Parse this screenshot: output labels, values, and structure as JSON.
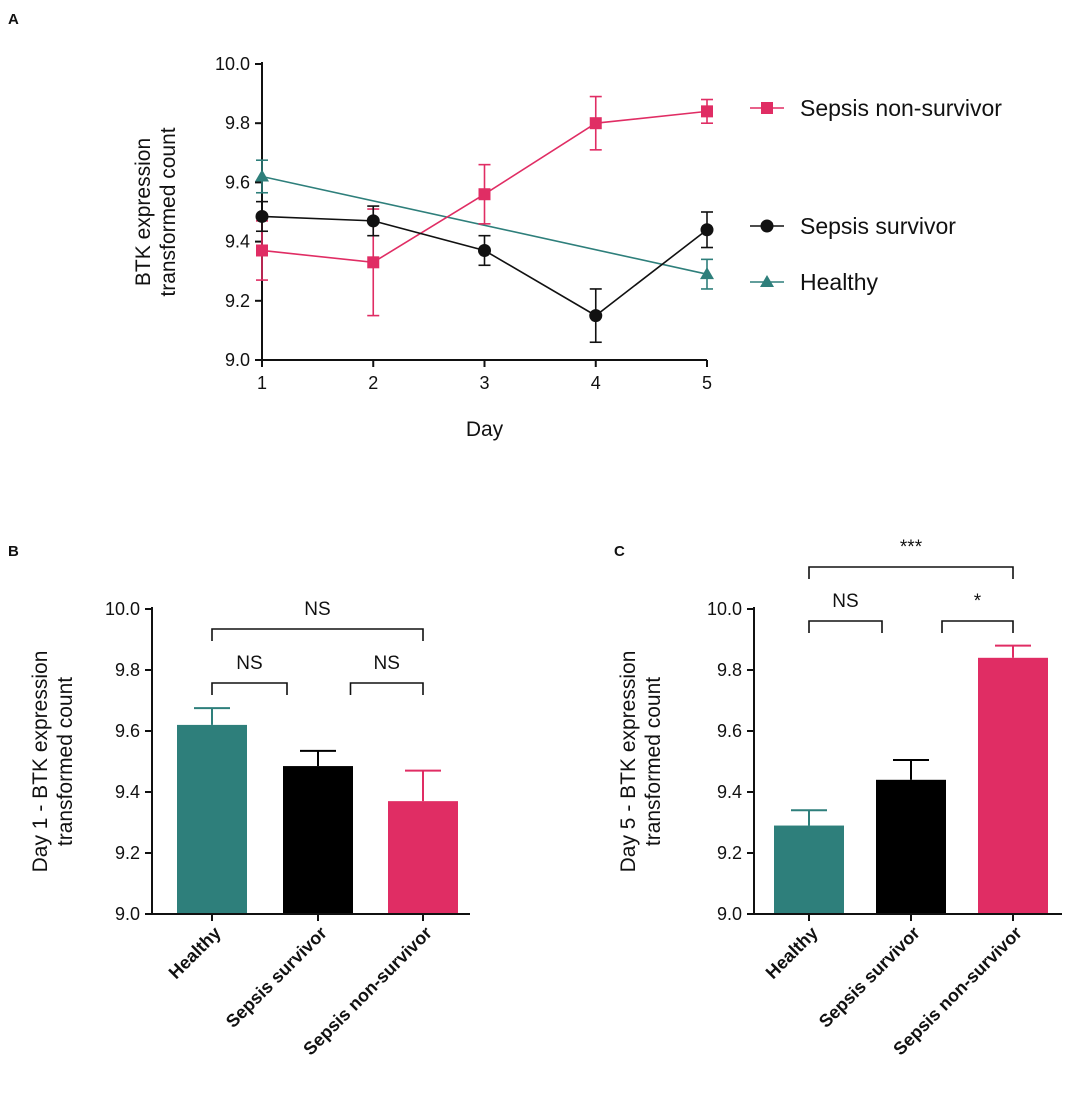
{
  "figure": {
    "panels": [
      {
        "panel_label": "A",
        "chart_data": {
          "type": "line",
          "x": [
            1,
            2,
            3,
            4,
            5
          ],
          "xlabel": "Day",
          "ylabel_lines": [
            "BTK expression",
            "transformed count"
          ],
          "ylim": [
            9.0,
            10.0
          ],
          "yticks": [
            "9.0",
            "9.2",
            "9.4",
            "9.6",
            "9.8",
            "10.0"
          ],
          "series": [
            {
              "name": "Sepsis non-survivor",
              "color": "#e02d64",
              "marker": "square",
              "x": [
                1,
                2,
                3,
                4,
                5
              ],
              "values": [
                9.37,
                9.33,
                9.56,
                9.8,
                9.84
              ],
              "err": [
                0.1,
                0.18,
                0.1,
                0.09,
                0.04
              ]
            },
            {
              "name": "Sepsis survivor",
              "color": "#111111",
              "marker": "circle",
              "x": [
                1,
                2,
                3,
                4,
                5
              ],
              "values": [
                9.485,
                9.47,
                9.37,
                9.15,
                9.44
              ],
              "err": [
                0.05,
                0.05,
                0.05,
                0.09,
                0.06
              ]
            },
            {
              "name": "Healthy",
              "color": "#2e7f7b",
              "marker": "triangle",
              "x": [
                1,
                5
              ],
              "values": [
                9.62,
                9.29
              ],
              "err": [
                0.055,
                0.05
              ]
            }
          ]
        }
      },
      {
        "panel_label": "B",
        "chart_data": {
          "type": "bar",
          "categories": [
            "Healthy",
            "Sepsis survivor",
            "Sepsis non-survivor"
          ],
          "values": [
            9.62,
            9.485,
            9.37
          ],
          "err": [
            0.055,
            0.05,
            0.1
          ],
          "colors": [
            "#2e7f7b",
            "#000000",
            "#e02d64"
          ],
          "ylabel_lines": [
            "Day 1 - BTK expression",
            "transformed count"
          ],
          "ylim": [
            9.0,
            10.0
          ],
          "yticks": [
            "9.0",
            "9.2",
            "9.4",
            "9.6",
            "9.8",
            "10.0"
          ],
          "comparisons": [
            {
              "from": 0,
              "to": 2,
              "label": "NS",
              "level": 2
            },
            {
              "from": 0,
              "to": 1,
              "label": "NS",
              "level": 1
            },
            {
              "from": 1,
              "to": 2,
              "label": "NS",
              "level": 1
            }
          ]
        }
      },
      {
        "panel_label": "C",
        "chart_data": {
          "type": "bar",
          "categories": [
            "Healthy",
            "Sepsis survivor",
            "Sepsis non-survivor"
          ],
          "values": [
            9.29,
            9.44,
            9.84
          ],
          "err": [
            0.05,
            0.065,
            0.04
          ],
          "colors": [
            "#2e7f7b",
            "#000000",
            "#e02d64"
          ],
          "ylabel_lines": [
            "Day 5 - BTK expression",
            "transformed count"
          ],
          "ylim": [
            9.0,
            10.0
          ],
          "yticks": [
            "9.0",
            "9.2",
            "9.4",
            "9.6",
            "9.8",
            "10.0"
          ],
          "comparisons": [
            {
              "from": 0,
              "to": 2,
              "label": "***",
              "level": 2
            },
            {
              "from": 0,
              "to": 1,
              "label": "NS",
              "level": 1
            },
            {
              "from": 1,
              "to": 2,
              "label": "*",
              "level": 1
            }
          ]
        }
      }
    ]
  }
}
